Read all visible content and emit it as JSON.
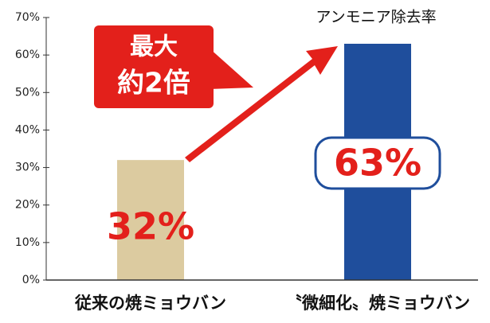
{
  "chart_data": {
    "type": "bar",
    "title": "アンモニア除去率",
    "annotation": [
      "最大",
      "約2倍"
    ],
    "categories": [
      "従来の焼ミョウバン",
      "〝微細化〟焼ミョウバン"
    ],
    "values": [
      32,
      63
    ],
    "value_labels": [
      "32%",
      "63%"
    ],
    "colors": [
      "#dccba0",
      "#1f4e9c"
    ],
    "ylim": [
      0,
      70
    ],
    "yticks": [
      {
        "value": 0,
        "label": "0%"
      },
      {
        "value": 10,
        "label": "10%"
      },
      {
        "value": 20,
        "label": "20%"
      },
      {
        "value": 30,
        "label": "30%"
      },
      {
        "value": 40,
        "label": "40%"
      },
      {
        "value": 50,
        "label": "50%"
      },
      {
        "value": 60,
        "label": "60%"
      },
      {
        "value": 70,
        "label": "70%"
      }
    ]
  }
}
